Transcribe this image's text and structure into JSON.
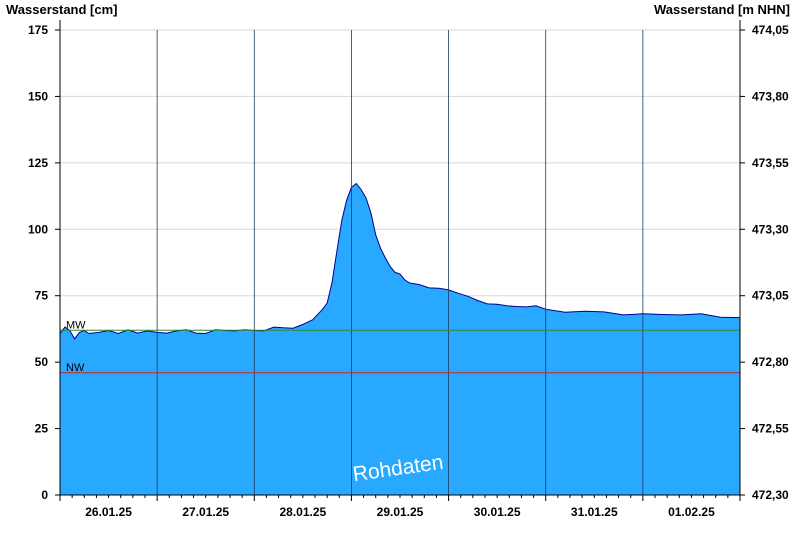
{
  "chart_data": {
    "type": "area",
    "ylabel_left": "Wasserstand [cm]",
    "ylabel_right": "Wasserstand [m NHN]",
    "watermark": "Rohdaten",
    "ylim": [
      0,
      175
    ],
    "yticks": [
      0,
      25,
      50,
      75,
      100,
      125,
      150,
      175
    ],
    "y2_ticks": [
      "472,30",
      "472,55",
      "472,80",
      "473,05",
      "473,30",
      "473,55",
      "473,80",
      "474,05"
    ],
    "xlim_days": [
      25.0,
      32.0
    ],
    "day_ticks": [
      {
        "day": 25.5,
        "label": "26.01.25"
      },
      {
        "day": 26.5,
        "label": "27.01.25"
      },
      {
        "day": 27.5,
        "label": "28.01.25"
      },
      {
        "day": 28.5,
        "label": "29.01.25"
      },
      {
        "day": 29.5,
        "label": "30.01.25"
      },
      {
        "day": 30.5,
        "label": "31.01.25"
      },
      {
        "day": 31.5,
        "label": "01.02.25"
      }
    ],
    "midnights": [
      26,
      27,
      28,
      29,
      30,
      31
    ],
    "reference_lines": [
      {
        "label": "MW",
        "value": 62,
        "color": "#2e8b2e"
      },
      {
        "label": "NW",
        "value": 46,
        "color": "#cc2222"
      }
    ],
    "fill_color": "#29a8ff",
    "line_color": "#00008b",
    "series": [
      {
        "x": [
          25.0,
          25.05,
          25.1,
          25.15,
          25.2,
          25.25,
          25.3,
          25.4,
          25.5,
          25.6,
          25.7,
          25.8,
          25.9,
          26.0,
          26.1,
          26.2,
          26.3,
          26.4,
          26.5,
          26.6,
          26.7,
          26.8,
          26.9,
          27.0,
          27.1,
          27.2,
          27.3,
          27.4,
          27.5,
          27.6,
          27.7,
          27.75,
          27.8,
          27.85,
          27.9,
          27.95,
          28.0,
          28.05,
          28.1,
          28.15,
          28.2,
          28.25,
          28.3,
          28.35,
          28.4,
          28.45,
          28.5,
          28.55,
          28.6,
          28.7,
          28.8,
          28.9,
          29.0,
          29.1,
          29.2,
          29.3,
          29.4,
          29.5,
          29.6,
          29.7,
          29.8,
          29.9,
          30.0,
          30.2,
          30.4,
          30.6,
          30.8,
          31.0,
          31.2,
          31.4,
          31.6,
          31.8,
          32.0
        ],
        "y": [
          61,
          63,
          62,
          59,
          61,
          62,
          61,
          61,
          62,
          61,
          62,
          61,
          62,
          61,
          61,
          62,
          62,
          61,
          61,
          62,
          62,
          62,
          62,
          62,
          62,
          63,
          63,
          63,
          64,
          66,
          70,
          72,
          80,
          92,
          103,
          111,
          116,
          117,
          115,
          112,
          106,
          98,
          93,
          89,
          86,
          84,
          83,
          81,
          80,
          79,
          78,
          78,
          77,
          76,
          75,
          73,
          72,
          72,
          71,
          71,
          71,
          71,
          70,
          69,
          69,
          69,
          68,
          68,
          68,
          68,
          68,
          67,
          67
        ]
      }
    ]
  }
}
